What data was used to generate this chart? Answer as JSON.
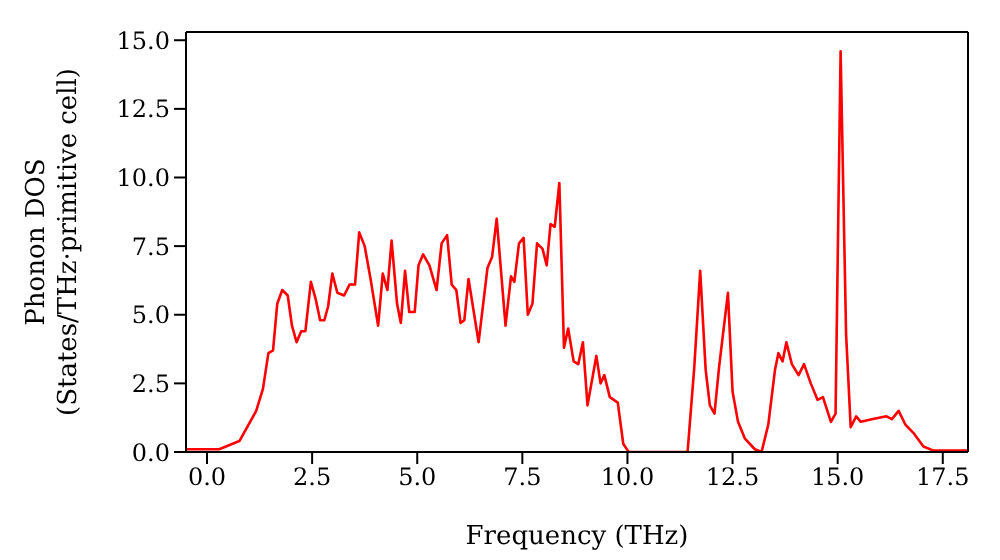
{
  "chart_data": {
    "type": "line",
    "xlabel": "Frequency (THz)",
    "ylabel": "Phonon DOS\n(States/THz·primitive cell)",
    "x": [
      -0.5,
      0.29,
      0.77,
      1.17,
      1.33,
      1.46,
      1.57,
      1.67,
      1.79,
      1.92,
      2.02,
      2.13,
      2.24,
      2.34,
      2.47,
      2.58,
      2.69,
      2.79,
      2.88,
      2.98,
      3.1,
      3.26,
      3.39,
      3.52,
      3.62,
      3.75,
      3.89,
      4.07,
      4.18,
      4.29,
      4.39,
      4.52,
      4.61,
      4.71,
      4.81,
      4.94,
      5.03,
      5.14,
      5.29,
      5.46,
      5.58,
      5.71,
      5.82,
      5.93,
      6.03,
      6.12,
      6.22,
      6.46,
      6.67,
      6.78,
      6.89,
      7.1,
      7.23,
      7.31,
      7.42,
      7.53,
      7.63,
      7.74,
      7.85,
      7.98,
      8.08,
      8.17,
      8.27,
      8.38,
      8.49,
      8.59,
      8.72,
      8.83,
      8.94,
      9.05,
      9.26,
      9.36,
      9.45,
      9.58,
      9.77,
      9.9,
      10.03,
      11.43,
      11.59,
      11.73,
      11.86,
      11.96,
      12.07,
      12.18,
      12.39,
      12.5,
      12.63,
      12.79,
      13.03,
      13.19,
      13.35,
      13.51,
      13.59,
      13.69,
      13.78,
      13.91,
      14.07,
      14.2,
      14.36,
      14.52,
      14.65,
      14.84,
      14.95,
      15.07,
      15.2,
      15.31,
      15.44,
      15.55,
      15.84,
      16.16,
      16.29,
      16.45,
      16.61,
      16.8,
      17.04,
      17.28,
      18.1
    ],
    "series": [
      {
        "color": "#ff0000",
        "values": [
          0.1,
          0.1,
          0.4,
          1.5,
          2.3,
          3.6,
          3.7,
          5.4,
          5.9,
          5.7,
          4.6,
          4.0,
          4.4,
          4.4,
          6.2,
          5.6,
          4.8,
          4.8,
          5.3,
          6.5,
          5.8,
          5.7,
          6.1,
          6.1,
          8.0,
          7.5,
          6.3,
          4.6,
          6.5,
          5.9,
          7.7,
          5.4,
          4.7,
          6.6,
          5.1,
          5.1,
          6.8,
          7.2,
          6.8,
          5.9,
          7.6,
          7.9,
          6.1,
          5.9,
          4.7,
          4.8,
          6.3,
          4.0,
          6.7,
          7.1,
          8.5,
          4.6,
          6.4,
          6.2,
          7.6,
          7.8,
          5.0,
          5.4,
          7.6,
          7.4,
          6.8,
          8.3,
          8.2,
          9.8,
          3.8,
          4.5,
          3.3,
          3.2,
          4.0,
          1.7,
          3.5,
          2.5,
          2.8,
          2.0,
          1.8,
          0.3,
          0,
          0,
          3.1,
          6.6,
          3.0,
          1.7,
          1.4,
          3.1,
          5.8,
          2.2,
          1.1,
          0.5,
          0.1,
          0,
          1.0,
          3.0,
          3.6,
          3.3,
          4.0,
          3.2,
          2.8,
          3.2,
          2.5,
          1.9,
          2.0,
          1.1,
          1.4,
          14.6,
          4.3,
          0.9,
          1.3,
          1.1,
          1.2,
          1.3,
          1.2,
          1.5,
          1.0,
          0.7,
          0.2,
          0.05,
          0.05
        ]
      }
    ],
    "xlim": [
      -0.5,
      18.1
    ],
    "ylim": [
      0,
      15.3
    ],
    "xticks": [
      {
        "value": 0,
        "label": "0.0"
      },
      2.5,
      {
        "value": 5,
        "label": "5.0"
      },
      7.5,
      {
        "value": 10,
        "label": "10.0"
      },
      12.5,
      {
        "value": 15,
        "label": "15.0"
      },
      17.5
    ],
    "yticks": [
      {
        "value": 0,
        "label": "0.0"
      },
      2.5,
      {
        "value": 5,
        "label": "5.0"
      },
      7.5,
      {
        "value": 10,
        "label": "10.0"
      },
      12.5,
      {
        "value": 15,
        "label": "15.0"
      }
    ],
    "grid": false,
    "legend": false,
    "marker": "none",
    "line_style": "solid"
  }
}
